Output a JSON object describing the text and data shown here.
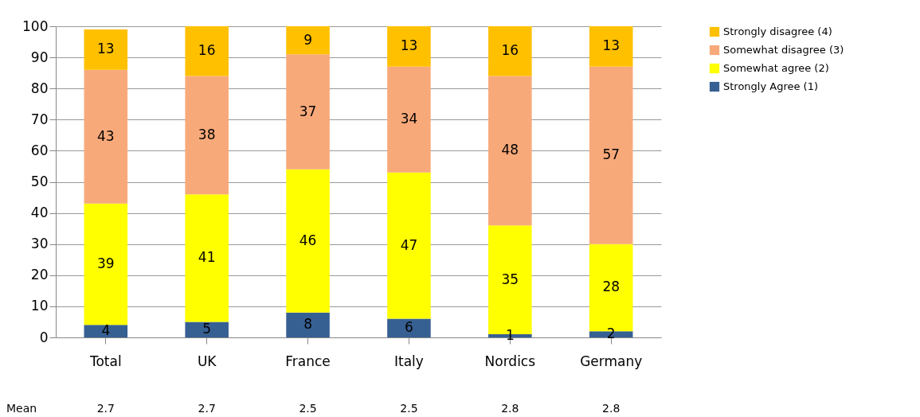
{
  "chart_data": {
    "type": "bar",
    "stacked": true,
    "data_labels": true,
    "grid": "y",
    "legend": "top right",
    "categories": [
      "Total",
      "UK",
      "France",
      "Italy",
      "Nordics",
      "Germany"
    ],
    "series": [
      {
        "name": "Strongly Agree (1)",
        "color": "#376092",
        "values": [
          4,
          5,
          8,
          6,
          1,
          2
        ]
      },
      {
        "name": "Somewhat agree (2)",
        "color": "#ffff00",
        "values": [
          39,
          41,
          46,
          47,
          35,
          28
        ]
      },
      {
        "name": "Somewhat disagree (3)",
        "color": "#f8a97a",
        "values": [
          43,
          38,
          37,
          34,
          48,
          57
        ]
      },
      {
        "name": "Strongly disagree (4)",
        "color": "#ffc000",
        "values": [
          13,
          16,
          9,
          13,
          16,
          13
        ]
      }
    ],
    "ylim": [
      0,
      100
    ],
    "yticks": [
      0,
      10,
      20,
      30,
      40,
      50,
      60,
      70,
      80,
      90,
      100
    ],
    "annotations": [
      "Mean",
      "2.7",
      "2.7",
      "2.5",
      "2.5",
      "2.8",
      "2.8"
    ]
  }
}
